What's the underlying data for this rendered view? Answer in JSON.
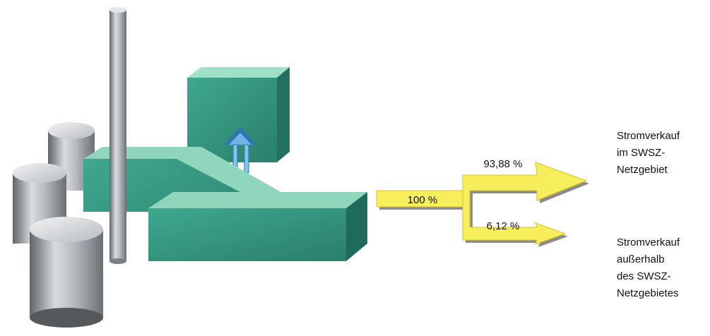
{
  "flow": {
    "input": "100 %",
    "outputs": [
      {
        "share": "93,88 %",
        "label_lines": [
          "Stromverkauf",
          "im SWSZ-",
          "Netzgebiet"
        ]
      },
      {
        "share": "6,12 %",
        "label_lines": [
          "Stromverkauf",
          "außerhalb",
          "des SWSZ-",
          "Netzgebietes"
        ]
      }
    ]
  }
}
